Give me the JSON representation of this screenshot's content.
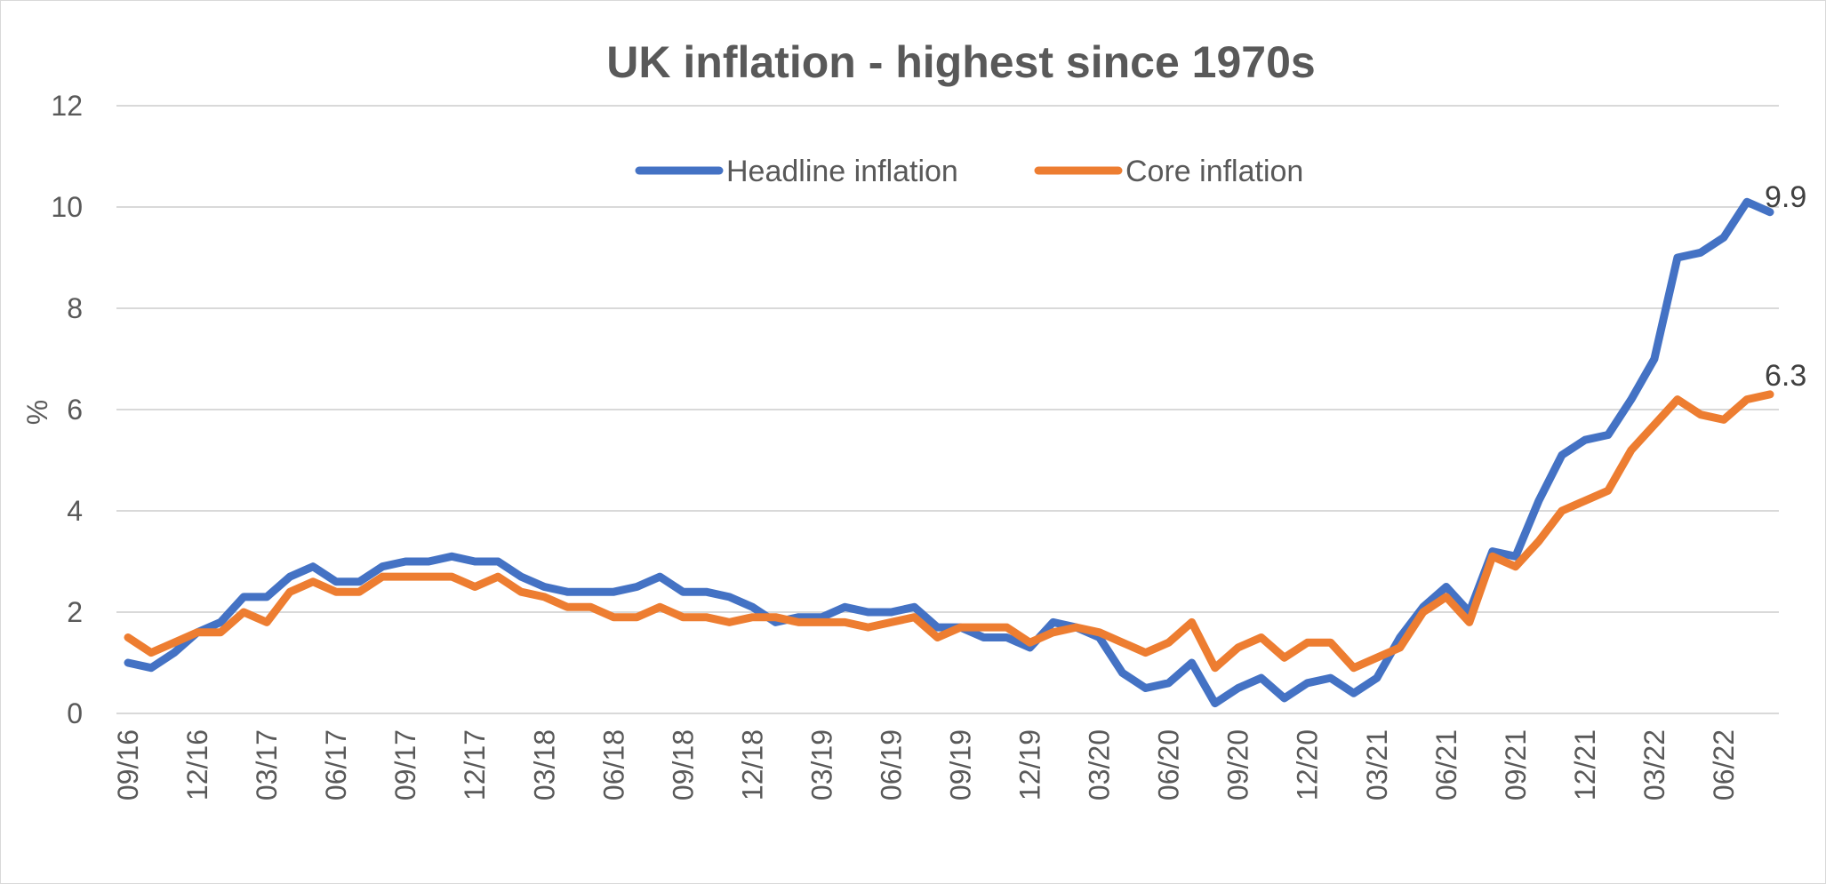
{
  "chart_data": {
    "type": "line",
    "title": "UK inflation - highest since 1970s",
    "ylabel": "%",
    "xlabel": "",
    "ylim": [
      0,
      12
    ],
    "yticks": [
      "0",
      "2",
      "4",
      "6",
      "8",
      "10",
      "12"
    ],
    "grid": true,
    "legend_position": "top-center",
    "x_tick_labels": [
      "09/16",
      "12/16",
      "03/17",
      "06/17",
      "09/17",
      "12/17",
      "03/18",
      "06/18",
      "09/18",
      "12/18",
      "03/19",
      "06/19",
      "09/19",
      "12/19",
      "03/20",
      "06/20",
      "09/20",
      "12/20",
      "03/21",
      "06/21",
      "09/21",
      "12/21",
      "03/22",
      "06/22"
    ],
    "x": [
      "09/16",
      "10/16",
      "11/16",
      "12/16",
      "01/17",
      "02/17",
      "03/17",
      "04/17",
      "05/17",
      "06/17",
      "07/17",
      "08/17",
      "09/17",
      "10/17",
      "11/17",
      "12/17",
      "01/18",
      "02/18",
      "03/18",
      "04/18",
      "05/18",
      "06/18",
      "07/18",
      "08/18",
      "09/18",
      "10/18",
      "11/18",
      "12/18",
      "01/19",
      "02/19",
      "03/19",
      "04/19",
      "05/19",
      "06/19",
      "07/19",
      "08/19",
      "09/19",
      "10/19",
      "11/19",
      "12/19",
      "01/20",
      "02/20",
      "03/20",
      "04/20",
      "05/20",
      "06/20",
      "07/20",
      "08/20",
      "09/20",
      "10/20",
      "11/20",
      "12/20",
      "01/21",
      "02/21",
      "03/21",
      "04/21",
      "05/21",
      "06/21",
      "07/21",
      "08/21",
      "09/21",
      "10/21",
      "11/21",
      "12/21",
      "01/22",
      "02/22",
      "03/22",
      "04/22",
      "05/22",
      "06/22",
      "07/22",
      "08/22"
    ],
    "series": [
      {
        "name": "Headline inflation",
        "color": "#4472c4",
        "end_label": "9.9",
        "values": [
          1.0,
          0.9,
          1.2,
          1.6,
          1.8,
          2.3,
          2.3,
          2.7,
          2.9,
          2.6,
          2.6,
          2.9,
          3.0,
          3.0,
          3.1,
          3.0,
          3.0,
          2.7,
          2.5,
          2.4,
          2.4,
          2.4,
          2.5,
          2.7,
          2.4,
          2.4,
          2.3,
          2.1,
          1.8,
          1.9,
          1.9,
          2.1,
          2.0,
          2.0,
          2.1,
          1.7,
          1.7,
          1.5,
          1.5,
          1.3,
          1.8,
          1.7,
          1.5,
          0.8,
          0.5,
          0.6,
          1.0,
          0.2,
          0.5,
          0.7,
          0.3,
          0.6,
          0.7,
          0.4,
          0.7,
          1.5,
          2.1,
          2.5,
          2.0,
          3.2,
          3.1,
          4.2,
          5.1,
          5.4,
          5.5,
          6.2,
          7.0,
          9.0,
          9.1,
          9.4,
          10.1,
          9.9
        ]
      },
      {
        "name": "Core inflation",
        "color": "#ed7d31",
        "end_label": "6.3",
        "values": [
          1.5,
          1.2,
          1.4,
          1.6,
          1.6,
          2.0,
          1.8,
          2.4,
          2.6,
          2.4,
          2.4,
          2.7,
          2.7,
          2.7,
          2.7,
          2.5,
          2.7,
          2.4,
          2.3,
          2.1,
          2.1,
          1.9,
          1.9,
          2.1,
          1.9,
          1.9,
          1.8,
          1.9,
          1.9,
          1.8,
          1.8,
          1.8,
          1.7,
          1.8,
          1.9,
          1.5,
          1.7,
          1.7,
          1.7,
          1.4,
          1.6,
          1.7,
          1.6,
          1.4,
          1.2,
          1.4,
          1.8,
          0.9,
          1.3,
          1.5,
          1.1,
          1.4,
          1.4,
          0.9,
          1.1,
          1.3,
          2.0,
          2.3,
          1.8,
          3.1,
          2.9,
          3.4,
          4.0,
          4.2,
          4.4,
          5.2,
          5.7,
          6.2,
          5.9,
          5.8,
          6.2,
          6.3
        ]
      }
    ]
  }
}
